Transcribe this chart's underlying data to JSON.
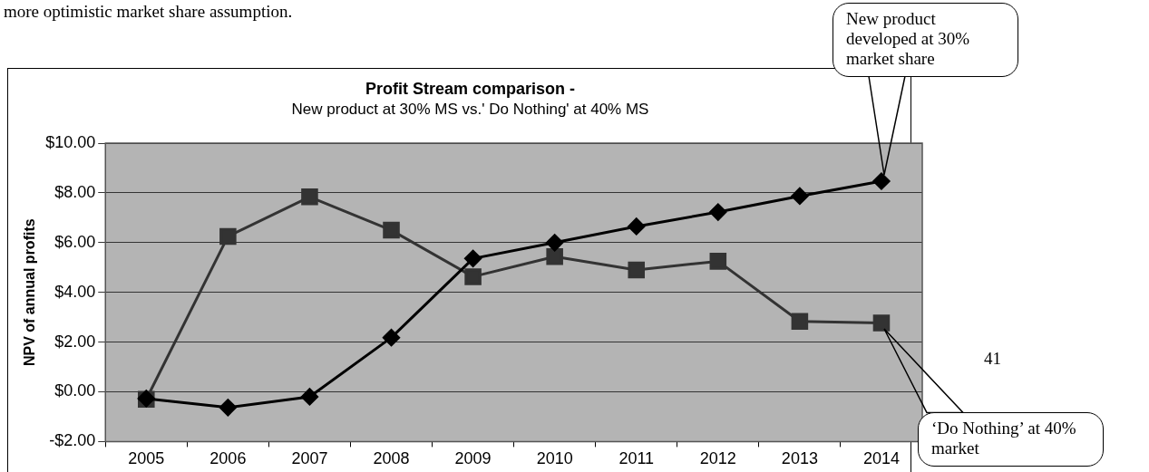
{
  "chart_data": {
    "type": "line",
    "title": "Profit Stream comparison -",
    "subtitle": "New product at 30% MS vs.' Do Nothing' at 40% MS",
    "ylabel": "NPV of annual profits",
    "categories": [
      "2005",
      "2006",
      "2007",
      "2008",
      "2009",
      "2010",
      "2011",
      "2012",
      "2013",
      "2014"
    ],
    "series": [
      {
        "color": "#000000",
        "marker": "diamond",
        "values": [
          -0.27,
          -0.63,
          -0.2,
          2.18,
          5.36,
          6.0,
          6.65,
          7.23,
          7.87,
          8.47
        ]
      },
      {
        "color": "#333333",
        "marker": "square",
        "values": [
          -0.3,
          6.25,
          7.84,
          6.5,
          4.63,
          5.44,
          4.9,
          5.25,
          2.83,
          2.77
        ]
      }
    ],
    "ylim": [
      -2,
      10
    ],
    "yticks": [
      {
        "value": -2,
        "label": "-$2.00"
      },
      {
        "value": 0,
        "label": "$0.00"
      },
      {
        "value": 2,
        "label": "$2.00"
      },
      {
        "value": 4,
        "label": "$4.00"
      },
      {
        "value": 6,
        "label": "$6.00"
      },
      {
        "value": 8,
        "label": "$8.00"
      },
      {
        "value": 10,
        "label": "$10.00"
      }
    ],
    "grid": "y",
    "legend": false,
    "line_style": "solid",
    "annotations": [
      "more optimistic market share assumption.",
      "41",
      "New product developed at 30% market share",
      "‘Do Nothing’ at 40% market"
    ]
  }
}
